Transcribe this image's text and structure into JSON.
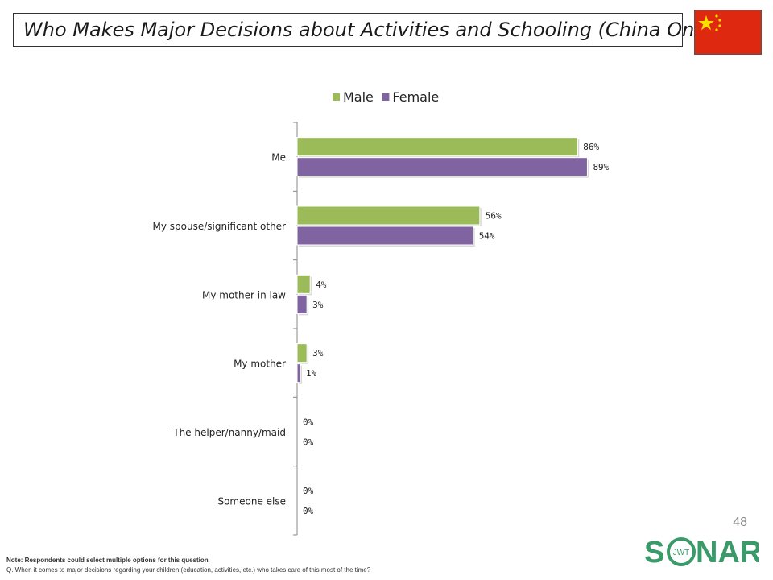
{
  "header": {
    "title": "Who Makes Major Decisions about Activities and Schooling (China Only)"
  },
  "flag": {
    "icon": "china-flag-icon",
    "red": "#de2910",
    "yellow": "#ffde00"
  },
  "chart_data": {
    "type": "bar",
    "orientation": "horizontal",
    "categories": [
      "Me",
      "My spouse/significant other",
      "My mother in law",
      "My mother",
      "The helper/nanny/maid",
      "Someone else"
    ],
    "series": [
      {
        "name": "Male",
        "values": [
          86,
          56,
          4,
          3,
          0,
          0
        ],
        "labels": [
          "86%",
          "56%",
          "4%",
          "3%",
          "0%",
          "0%"
        ],
        "color": "#9bbb59"
      },
      {
        "name": "Female",
        "values": [
          89,
          54,
          3,
          1,
          0,
          0
        ],
        "labels": [
          "89%",
          "54%",
          "3%",
          "1%",
          "0%",
          "0%"
        ],
        "color": "#8064a2"
      }
    ],
    "xlim": [
      0,
      100
    ],
    "grid": false,
    "legend": "top"
  },
  "page_number": "48",
  "logo": {
    "text_left": "S",
    "text_right": "NAR",
    "ring_text": "JWT",
    "color": "#3a9a6a"
  },
  "footnote": {
    "note": "Note: Respondents could select multiple options for this question",
    "question": "Q. When it comes to major decisions regarding your children (education, activities, etc.) who takes care of this most of the time?"
  }
}
